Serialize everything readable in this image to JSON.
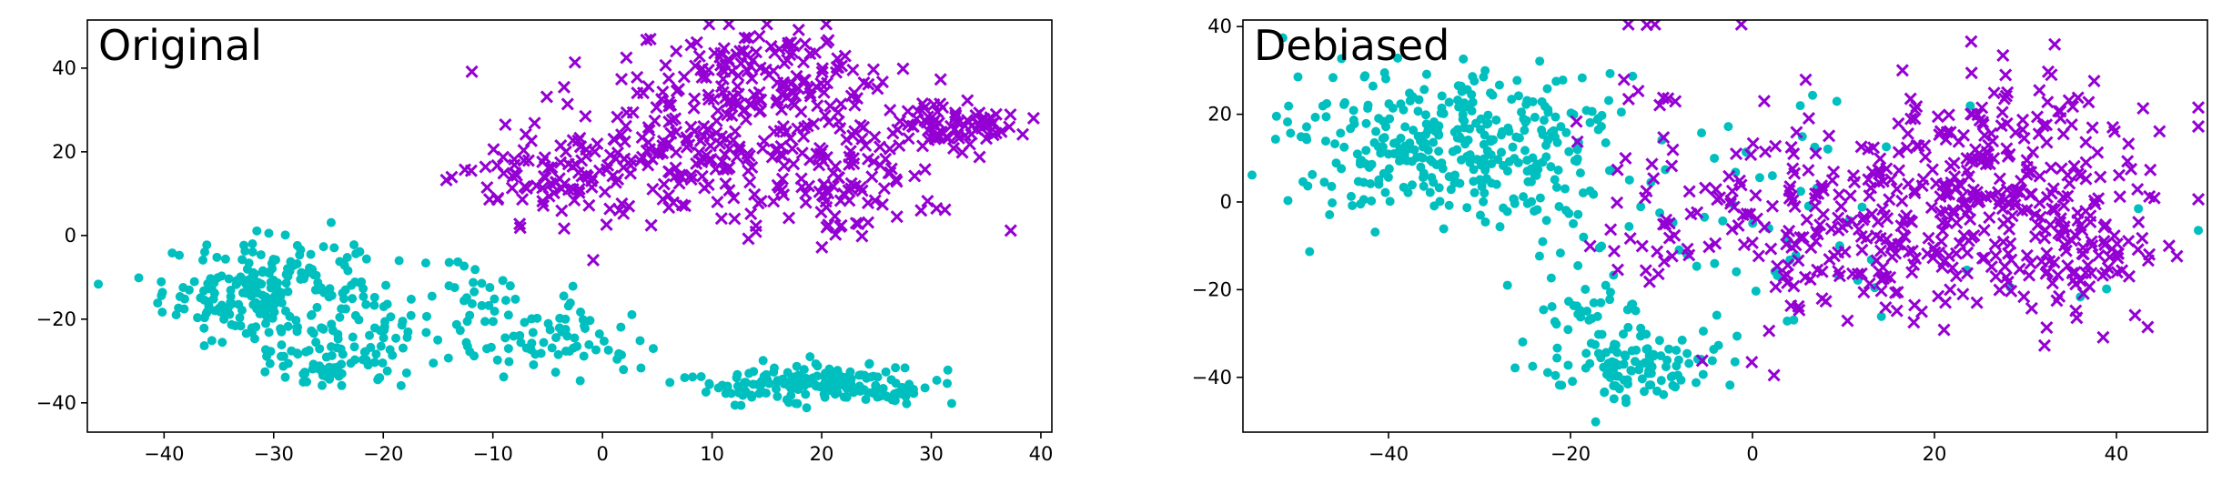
{
  "colors": {
    "class_a": "#00bfbf",
    "class_b": "#9400d3",
    "axes": "#000000",
    "background": "#ffffff"
  },
  "chart_data": [
    {
      "type": "scatter",
      "title": "Original",
      "xlim": [
        -47,
        41
      ],
      "ylim": [
        -47,
        51.5
      ],
      "xticks": [
        -40,
        -30,
        -20,
        -10,
        0,
        10,
        20,
        30,
        40
      ],
      "yticks": [
        -40,
        -20,
        0,
        20,
        40
      ],
      "xtick_labels": [
        "−40",
        "−30",
        "−20",
        "−10",
        "0",
        "10",
        "20",
        "30",
        "40"
      ],
      "ytick_labels": [
        "−40",
        "−20",
        "0",
        "20",
        "40"
      ],
      "grid": false,
      "series": [
        {
          "marker": "circle",
          "color": "#00bfbf",
          "clusters": [
            {
              "cx": -31,
              "cy": -14,
              "sx": 4.5,
              "sy": 6.5,
              "n": 220
            },
            {
              "cx": -24,
              "cy": -31,
              "sx": 3.0,
              "sy": 3.0,
              "n": 60
            },
            {
              "cx": -19,
              "cy": -16,
              "sx": 3.0,
              "sy": 7.0,
              "n": 40
            },
            {
              "cx": -11,
              "cy": -12,
              "sx": 3.0,
              "sy": 3.5,
              "n": 25
            },
            {
              "cx": -5,
              "cy": -26,
              "sx": 4.5,
              "sy": 4.5,
              "n": 70
            },
            {
              "cx": 18,
              "cy": -35,
              "sx": 5.0,
              "sy": 2.5,
              "n": 150
            },
            {
              "cx": 26,
              "cy": -37,
              "sx": 2.0,
              "sy": 1.5,
              "n": 30
            }
          ]
        },
        {
          "marker": "x",
          "color": "#9400d3",
          "clusters": [
            {
              "cx": 15,
              "cy": 38,
              "sx": 6.0,
              "sy": 6.0,
              "n": 150
            },
            {
              "cx": 7,
              "cy": 18,
              "sx": 6.0,
              "sy": 8.0,
              "n": 170
            },
            {
              "cx": 22,
              "cy": 15,
              "sx": 4.5,
              "sy": 8.0,
              "n": 120
            },
            {
              "cx": 32,
              "cy": 27,
              "sx": 3.0,
              "sy": 3.0,
              "n": 70
            },
            {
              "cx": -4,
              "cy": 15,
              "sx": 4.5,
              "sy": 6.0,
              "n": 70
            }
          ]
        }
      ]
    },
    {
      "type": "scatter",
      "title": "Debiased",
      "xlim": [
        -56,
        50
      ],
      "ylim": [
        -52.5,
        41.5
      ],
      "xticks": [
        -40,
        -20,
        0,
        20,
        40
      ],
      "yticks": [
        -40,
        -20,
        0,
        20,
        40
      ],
      "xtick_labels": [
        "−40",
        "−20",
        "0",
        "20",
        "40"
      ],
      "ytick_labels": [
        "−40",
        "−20",
        "0",
        "20",
        "40"
      ],
      "grid": false,
      "series": [
        {
          "marker": "circle",
          "color": "#00bfbf",
          "clusters": [
            {
              "cx": -35,
              "cy": 13,
              "sx": 7.5,
              "sy": 8.5,
              "n": 280
            },
            {
              "cx": -22,
              "cy": 6,
              "sx": 5.0,
              "sy": 12.0,
              "n": 90
            },
            {
              "cx": -13,
              "cy": -38,
              "sx": 4.5,
              "sy": 4.5,
              "n": 110
            },
            {
              "cx": -18,
              "cy": -25,
              "sx": 3.0,
              "sy": 3.5,
              "n": 25
            },
            {
              "cx": -2,
              "cy": 0,
              "sx": 8.0,
              "sy": 14.0,
              "n": 40
            },
            {
              "cx": 20,
              "cy": -10,
              "sx": 15.0,
              "sy": 15.0,
              "n": 18
            }
          ]
        },
        {
          "marker": "x",
          "color": "#9400d3",
          "clusters": [
            {
              "cx": 10,
              "cy": -8,
              "sx": 9.0,
              "sy": 11.0,
              "n": 200
            },
            {
              "cx": 28,
              "cy": 5,
              "sx": 9.0,
              "sy": 12.0,
              "n": 260
            },
            {
              "cx": 36,
              "cy": -12,
              "sx": 4.0,
              "sy": 8.0,
              "n": 60
            },
            {
              "cx": -8,
              "cy": 15,
              "sx": 8.0,
              "sy": 15.0,
              "n": 35
            },
            {
              "cx": -12,
              "cy": -12,
              "sx": 4.0,
              "sy": 5.0,
              "n": 15
            }
          ]
        }
      ]
    }
  ]
}
